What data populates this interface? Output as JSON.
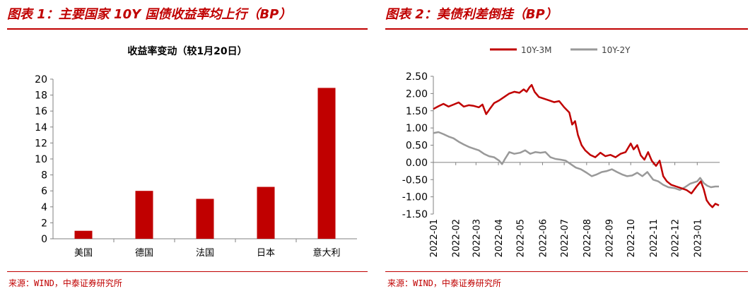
{
  "left_panel": {
    "title": "图表 1：主要国家 10Y 国债收益率均上行（BP）",
    "source": "来源：WIND，中泰证券研究所"
  },
  "right_panel": {
    "title": "图表 2：美债利差倒挂（BP）",
    "source": "来源：WIND，中泰证券研究所"
  },
  "colors": {
    "accent_red": "#c00000",
    "bar_red": "#c00000",
    "series_gray": "#999999",
    "grid": "#d9d9d9",
    "axis": "#808080"
  },
  "chart_data": [
    {
      "type": "bar",
      "title": "收益率变动（较1月20日）",
      "categories": [
        "美国",
        "德国",
        "法国",
        "日本",
        "意大利"
      ],
      "values": [
        1,
        6,
        5,
        6.5,
        18.9
      ],
      "ylim": [
        0,
        20
      ],
      "yticks": [
        "0",
        "2",
        "4",
        "6",
        "8",
        "10",
        "12",
        "14",
        "16",
        "18",
        "20"
      ],
      "grid": false
    },
    {
      "type": "line",
      "ylim": [
        -1.5,
        2.5
      ],
      "yticks": [
        "2.50",
        "2.00",
        "1.50",
        "1.00",
        "0.50",
        "0.00",
        "-0.50",
        "-1.00",
        "-1.50"
      ],
      "xticks": [
        "2022-01",
        "2022-02",
        "2022-03",
        "2022-04",
        "2022-05",
        "2022-06",
        "2022-07",
        "2022-08",
        "2022-09",
        "2022-10",
        "2022-11",
        "2022-12",
        "2023-01"
      ],
      "legend": "top-center",
      "grid": false,
      "series": [
        {
          "name": "10Y-3M",
          "color": "#c00000",
          "points": [
            [
              "2022-01-01",
              1.55
            ],
            [
              "2022-01-08",
              1.63
            ],
            [
              "2022-01-15",
              1.7
            ],
            [
              "2022-01-22",
              1.62
            ],
            [
              "2022-01-29",
              1.68
            ],
            [
              "2022-02-05",
              1.74
            ],
            [
              "2022-02-12",
              1.62
            ],
            [
              "2022-02-19",
              1.66
            ],
            [
              "2022-02-26",
              1.64
            ],
            [
              "2022-03-05",
              1.6
            ],
            [
              "2022-03-10",
              1.68
            ],
            [
              "2022-03-15",
              1.4
            ],
            [
              "2022-03-20",
              1.55
            ],
            [
              "2022-03-26",
              1.72
            ],
            [
              "2022-04-02",
              1.8
            ],
            [
              "2022-04-09",
              1.9
            ],
            [
              "2022-04-16",
              2.0
            ],
            [
              "2022-04-23",
              2.05
            ],
            [
              "2022-04-30",
              2.02
            ],
            [
              "2022-05-06",
              2.12
            ],
            [
              "2022-05-10",
              2.05
            ],
            [
              "2022-05-14",
              2.18
            ],
            [
              "2022-05-17",
              2.25
            ],
            [
              "2022-05-21",
              2.05
            ],
            [
              "2022-05-27",
              1.9
            ],
            [
              "2022-06-03",
              1.85
            ],
            [
              "2022-06-10",
              1.8
            ],
            [
              "2022-06-17",
              1.75
            ],
            [
              "2022-06-24",
              1.78
            ],
            [
              "2022-07-01",
              1.6
            ],
            [
              "2022-07-08",
              1.45
            ],
            [
              "2022-07-12",
              1.1
            ],
            [
              "2022-07-16",
              1.2
            ],
            [
              "2022-07-20",
              0.8
            ],
            [
              "2022-07-25",
              0.5
            ],
            [
              "2022-07-30",
              0.35
            ],
            [
              "2022-08-06",
              0.22
            ],
            [
              "2022-08-13",
              0.15
            ],
            [
              "2022-08-20",
              0.28
            ],
            [
              "2022-08-27",
              0.18
            ],
            [
              "2022-09-03",
              0.22
            ],
            [
              "2022-09-10",
              0.15
            ],
            [
              "2022-09-17",
              0.25
            ],
            [
              "2022-09-24",
              0.3
            ],
            [
              "2022-10-01",
              0.55
            ],
            [
              "2022-10-05",
              0.38
            ],
            [
              "2022-10-10",
              0.5
            ],
            [
              "2022-10-15",
              0.2
            ],
            [
              "2022-10-20",
              0.08
            ],
            [
              "2022-10-25",
              0.3
            ],
            [
              "2022-10-30",
              0.05
            ],
            [
              "2022-11-05",
              -0.1
            ],
            [
              "2022-11-10",
              0.05
            ],
            [
              "2022-11-15",
              -0.4
            ],
            [
              "2022-11-20",
              -0.55
            ],
            [
              "2022-11-26",
              -0.65
            ],
            [
              "2022-12-03",
              -0.7
            ],
            [
              "2022-12-10",
              -0.75
            ],
            [
              "2022-12-17",
              -0.8
            ],
            [
              "2022-12-24",
              -0.9
            ],
            [
              "2022-12-31",
              -0.7
            ],
            [
              "2023-01-06",
              -0.55
            ],
            [
              "2023-01-10",
              -0.78
            ],
            [
              "2023-01-14",
              -1.1
            ],
            [
              "2023-01-18",
              -1.22
            ],
            [
              "2023-01-22",
              -1.3
            ],
            [
              "2023-01-26",
              -1.2
            ],
            [
              "2023-01-31",
              -1.25
            ]
          ]
        },
        {
          "name": "10Y-2Y",
          "color": "#999999",
          "points": [
            [
              "2022-01-01",
              0.85
            ],
            [
              "2022-01-08",
              0.88
            ],
            [
              "2022-01-15",
              0.82
            ],
            [
              "2022-01-22",
              0.75
            ],
            [
              "2022-01-29",
              0.7
            ],
            [
              "2022-02-05",
              0.6
            ],
            [
              "2022-02-12",
              0.52
            ],
            [
              "2022-02-19",
              0.45
            ],
            [
              "2022-02-26",
              0.4
            ],
            [
              "2022-03-05",
              0.35
            ],
            [
              "2022-03-12",
              0.25
            ],
            [
              "2022-03-19",
              0.18
            ],
            [
              "2022-03-26",
              0.15
            ],
            [
              "2022-04-02",
              0.05
            ],
            [
              "2022-04-06",
              -0.05
            ],
            [
              "2022-04-10",
              0.1
            ],
            [
              "2022-04-16",
              0.3
            ],
            [
              "2022-04-23",
              0.25
            ],
            [
              "2022-05-01",
              0.28
            ],
            [
              "2022-05-08",
              0.35
            ],
            [
              "2022-05-15",
              0.25
            ],
            [
              "2022-05-22",
              0.3
            ],
            [
              "2022-05-29",
              0.28
            ],
            [
              "2022-06-05",
              0.3
            ],
            [
              "2022-06-12",
              0.15
            ],
            [
              "2022-06-19",
              0.1
            ],
            [
              "2022-06-26",
              0.08
            ],
            [
              "2022-07-03",
              0.05
            ],
            [
              "2022-07-10",
              -0.05
            ],
            [
              "2022-07-17",
              -0.15
            ],
            [
              "2022-07-24",
              -0.2
            ],
            [
              "2022-08-01",
              -0.3
            ],
            [
              "2022-08-08",
              -0.4
            ],
            [
              "2022-08-15",
              -0.35
            ],
            [
              "2022-08-22",
              -0.28
            ],
            [
              "2022-08-29",
              -0.25
            ],
            [
              "2022-09-05",
              -0.2
            ],
            [
              "2022-09-12",
              -0.28
            ],
            [
              "2022-09-19",
              -0.35
            ],
            [
              "2022-09-26",
              -0.4
            ],
            [
              "2022-10-03",
              -0.38
            ],
            [
              "2022-10-10",
              -0.3
            ],
            [
              "2022-10-17",
              -0.4
            ],
            [
              "2022-10-24",
              -0.28
            ],
            [
              "2022-11-01",
              -0.5
            ],
            [
              "2022-11-08",
              -0.55
            ],
            [
              "2022-11-15",
              -0.65
            ],
            [
              "2022-11-22",
              -0.72
            ],
            [
              "2022-12-01",
              -0.75
            ],
            [
              "2022-12-08",
              -0.8
            ],
            [
              "2022-12-15",
              -0.72
            ],
            [
              "2022-12-22",
              -0.62
            ],
            [
              "2023-01-01",
              -0.55
            ],
            [
              "2023-01-05",
              -0.45
            ],
            [
              "2023-01-10",
              -0.6
            ],
            [
              "2023-01-15",
              -0.68
            ],
            [
              "2023-01-20",
              -0.72
            ],
            [
              "2023-01-26",
              -0.7
            ],
            [
              "2023-01-31",
              -0.7
            ]
          ]
        }
      ]
    }
  ]
}
